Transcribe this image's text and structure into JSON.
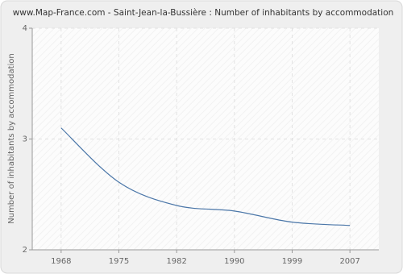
{
  "chart_data": {
    "type": "line",
    "title": "www.Map-France.com - Saint-Jean-la-Bussière : Number of inhabitants by accommodation",
    "y_label": "Number of inhabitants by accommodation",
    "categories": [
      "1968",
      "1975",
      "1982",
      "1990",
      "1999",
      "2007"
    ],
    "series": [
      {
        "name": "Number of inhabitants by accommodation",
        "color": "#4a76a8",
        "values": [
          3.1,
          2.61,
          2.4,
          2.35,
          2.25,
          2.22
        ]
      }
    ],
    "ylim": [
      2,
      4
    ],
    "yticks": [
      2,
      3,
      4
    ],
    "grid": true
  }
}
